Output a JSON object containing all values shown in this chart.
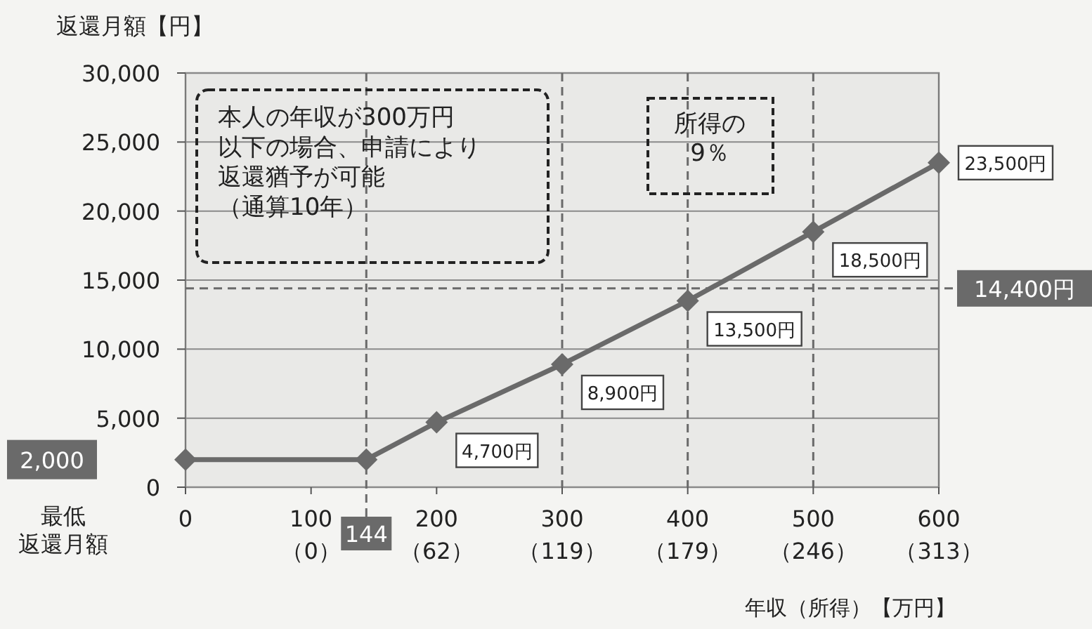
{
  "chart_data": {
    "type": "line",
    "xlabel": "年収（所得）【万円】",
    "ylabel": "返還月額【円】",
    "x": [
      0,
      144,
      200,
      300,
      400,
      500,
      600
    ],
    "series": [
      {
        "color": "#6a6a6a",
        "values": [
          2000,
          2000,
          4700,
          8900,
          13500,
          18500,
          23500
        ],
        "value_labels": [
          null,
          null,
          "4,700円",
          "8,900円",
          "13,500円",
          "18,500円",
          "23,500円"
        ]
      }
    ],
    "xlim": [
      0,
      600
    ],
    "ylim": [
      0,
      30000
    ],
    "xticks": [
      0,
      100,
      200,
      300,
      400,
      500,
      600
    ],
    "yticks": [
      {
        "value": 0,
        "label": "0"
      },
      {
        "value": 5000,
        "label": "5,000"
      },
      {
        "value": 10000,
        "label": "10,000"
      },
      {
        "value": 15000,
        "label": "15,000"
      },
      {
        "value": 20000,
        "label": "20,000"
      },
      {
        "value": 25000,
        "label": "25,000"
      },
      {
        "value": 30000,
        "label": "30,000"
      }
    ],
    "ref_lines": [
      {
        "axis": "y",
        "value": 14400,
        "label": "14,400円",
        "line_style": "dashed",
        "color": "#6a6a6a"
      },
      {
        "axis": "x",
        "value": 144,
        "label": "144",
        "line_style": "dashed",
        "color": "#6a6a6a"
      },
      {
        "axis": "x",
        "value": 300,
        "line_style": "dashed"
      },
      {
        "axis": "x",
        "value": 400,
        "line_style": "dashed"
      },
      {
        "axis": "x",
        "value": 500,
        "line_style": "dashed"
      }
    ],
    "annotations": [
      "本人の年収が300万円以下の場合、申請により返還猶予が可能（通算10年）",
      "所得の9％",
      "最低返還月額",
      "2,000",
      "（0）",
      "（62）",
      "（119）",
      "（179）",
      "（246）",
      "（313）"
    ],
    "grid": "y",
    "marker": "diamond",
    "line_style": "solid"
  }
}
